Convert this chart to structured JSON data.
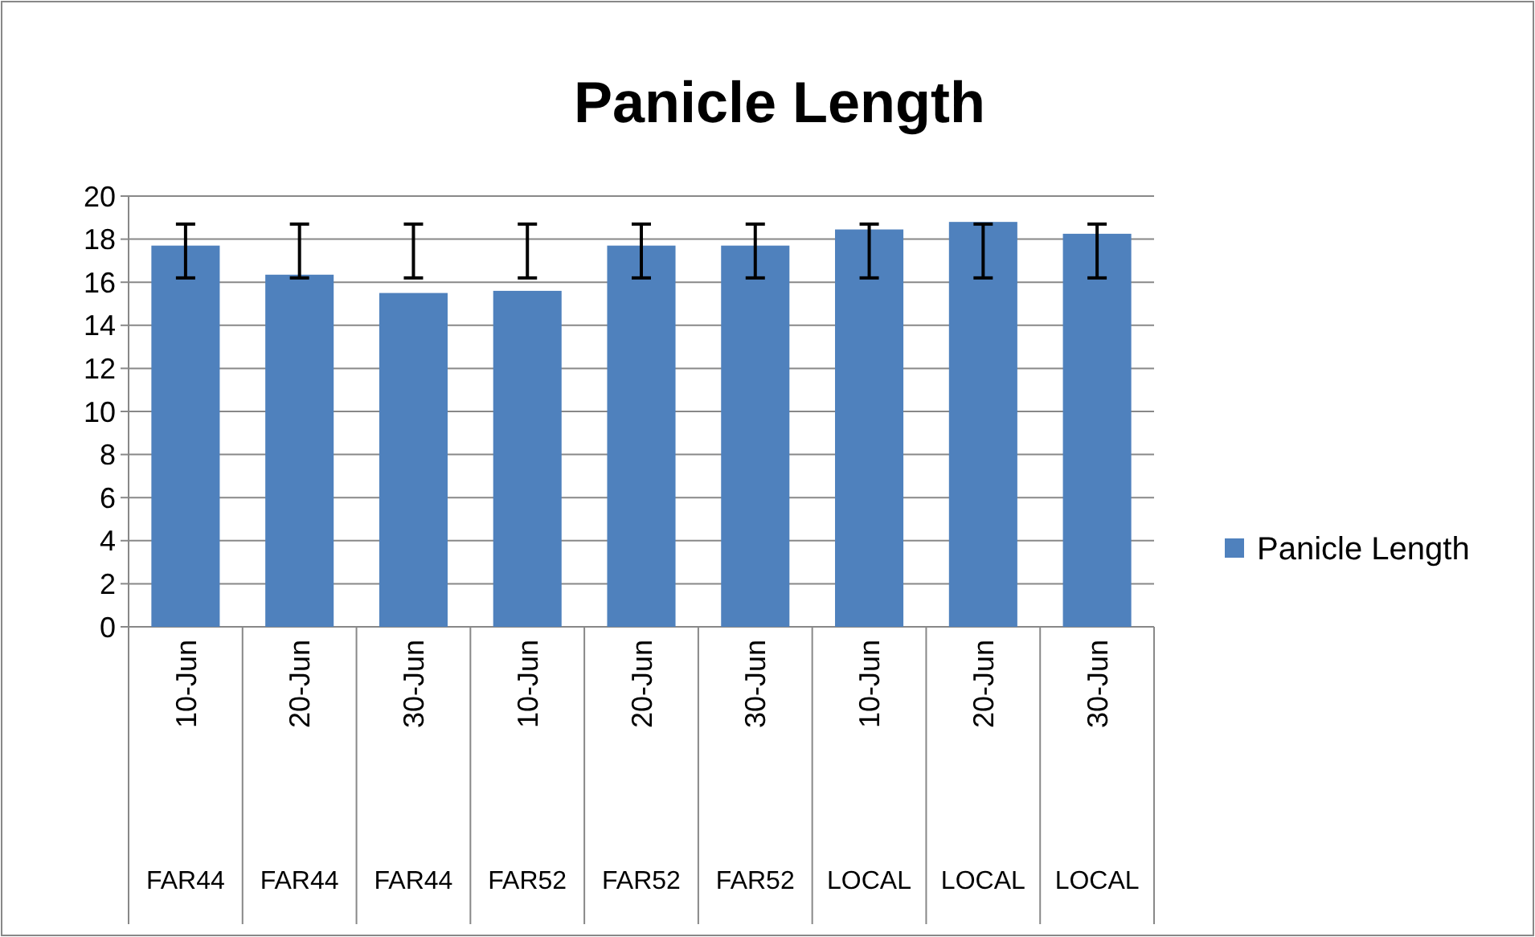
{
  "chart_data": {
    "type": "bar",
    "title": "Panicle Length",
    "categories": [
      "10-Jun\nFAR44",
      "20-Jun\nFAR44",
      "30-Jun\nFAR44",
      "10-Jun\nFAR52",
      "20-Jun\nFAR52",
      "30-Jun\nFAR52",
      "10-Jun\nLOCAL",
      "20-Jun\nLOCAL",
      "30-Jun\nLOCAL"
    ],
    "series": [
      {
        "name": "Panicle Length",
        "color": "#4f81bd",
        "values": [
          17.7,
          16.35,
          15.5,
          15.6,
          17.7,
          17.7,
          18.45,
          18.8,
          18.25
        ],
        "errors": [
          [
            16.2,
            18.7
          ],
          [
            16.2,
            18.7
          ],
          [
            16.2,
            18.7
          ],
          [
            16.2,
            18.7
          ],
          [
            16.2,
            18.7
          ],
          [
            16.2,
            18.7
          ],
          [
            16.2,
            18.7
          ],
          [
            16.2,
            18.7
          ],
          [
            16.2,
            18.7
          ]
        ]
      }
    ],
    "ylim": [
      0,
      20
    ],
    "yticks": [
      0,
      2,
      4,
      6,
      8,
      10,
      12,
      14,
      16,
      18,
      20
    ],
    "grid": "y",
    "legend": "right"
  }
}
